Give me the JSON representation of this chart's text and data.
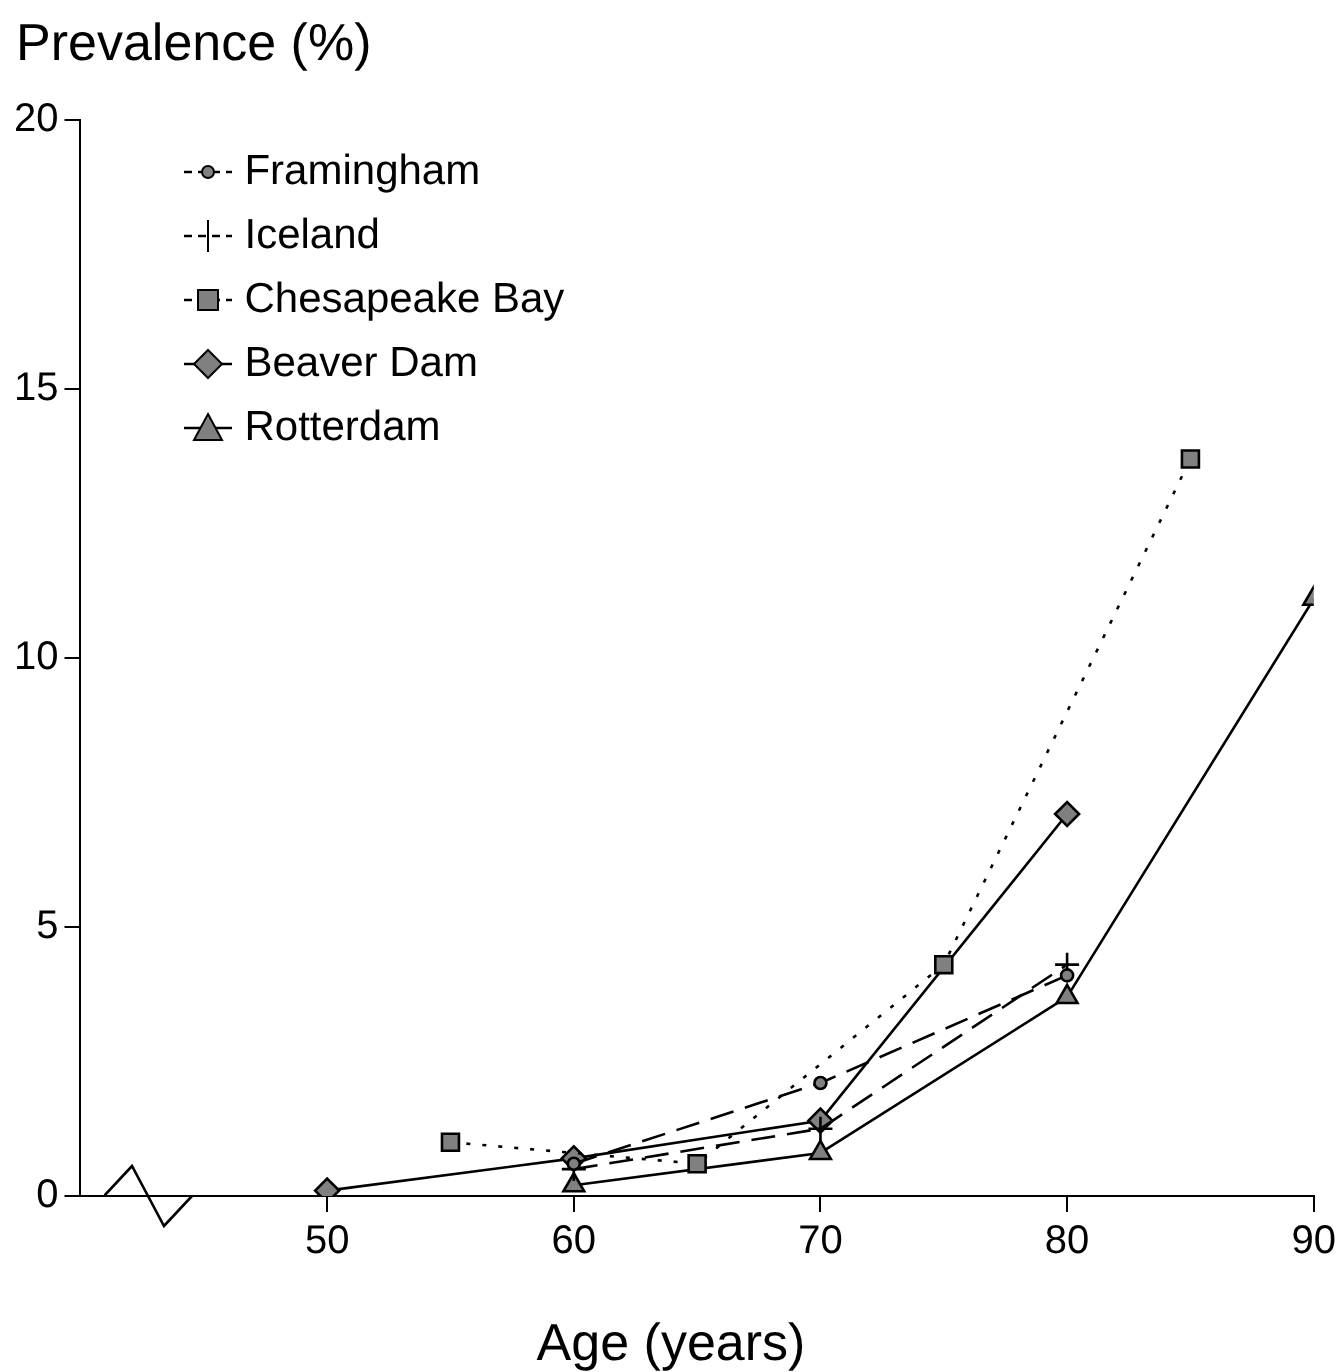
{
  "chart_data": {
    "type": "line",
    "xlabel": "Age (years)",
    "ylabel": "Prevalence (%)",
    "xlim": [
      40,
      90
    ],
    "xticks": [
      50,
      60,
      70,
      80,
      90
    ],
    "ylim": [
      0,
      20
    ],
    "yticks": [
      0,
      5,
      10,
      15,
      20
    ],
    "grid": false,
    "legend": "top left",
    "series": [
      {
        "name": "Framingham",
        "color": "#000000",
        "marker": "circle",
        "line_style": "dashed",
        "x": [
          60,
          70,
          80
        ],
        "values": [
          0.6,
          2.1,
          4.1
        ]
      },
      {
        "name": "Iceland",
        "color": "#000000",
        "marker": "cross",
        "line_style": "dashed",
        "x": [
          60,
          70,
          80
        ],
        "values": [
          0.5,
          1.25,
          4.3
        ]
      },
      {
        "name": "Chesapeake Bay",
        "color": "#000000",
        "marker": "square",
        "line_style": "dotted",
        "x": [
          55,
          65,
          75,
          85
        ],
        "values": [
          1.0,
          0.6,
          4.3,
          13.7
        ]
      },
      {
        "name": "Beaver Dam",
        "color": "#000000",
        "marker": "diamond",
        "line_style": "solid",
        "x": [
          50,
          60,
          70,
          80
        ],
        "values": [
          0.1,
          0.7,
          1.4,
          7.1
        ]
      },
      {
        "name": "Rotterdam",
        "color": "#000000",
        "marker": "triangle",
        "line_style": "solid",
        "x": [
          60,
          70,
          80,
          90
        ],
        "values": [
          0.2,
          0.8,
          3.7,
          11.1
        ]
      }
    ]
  }
}
